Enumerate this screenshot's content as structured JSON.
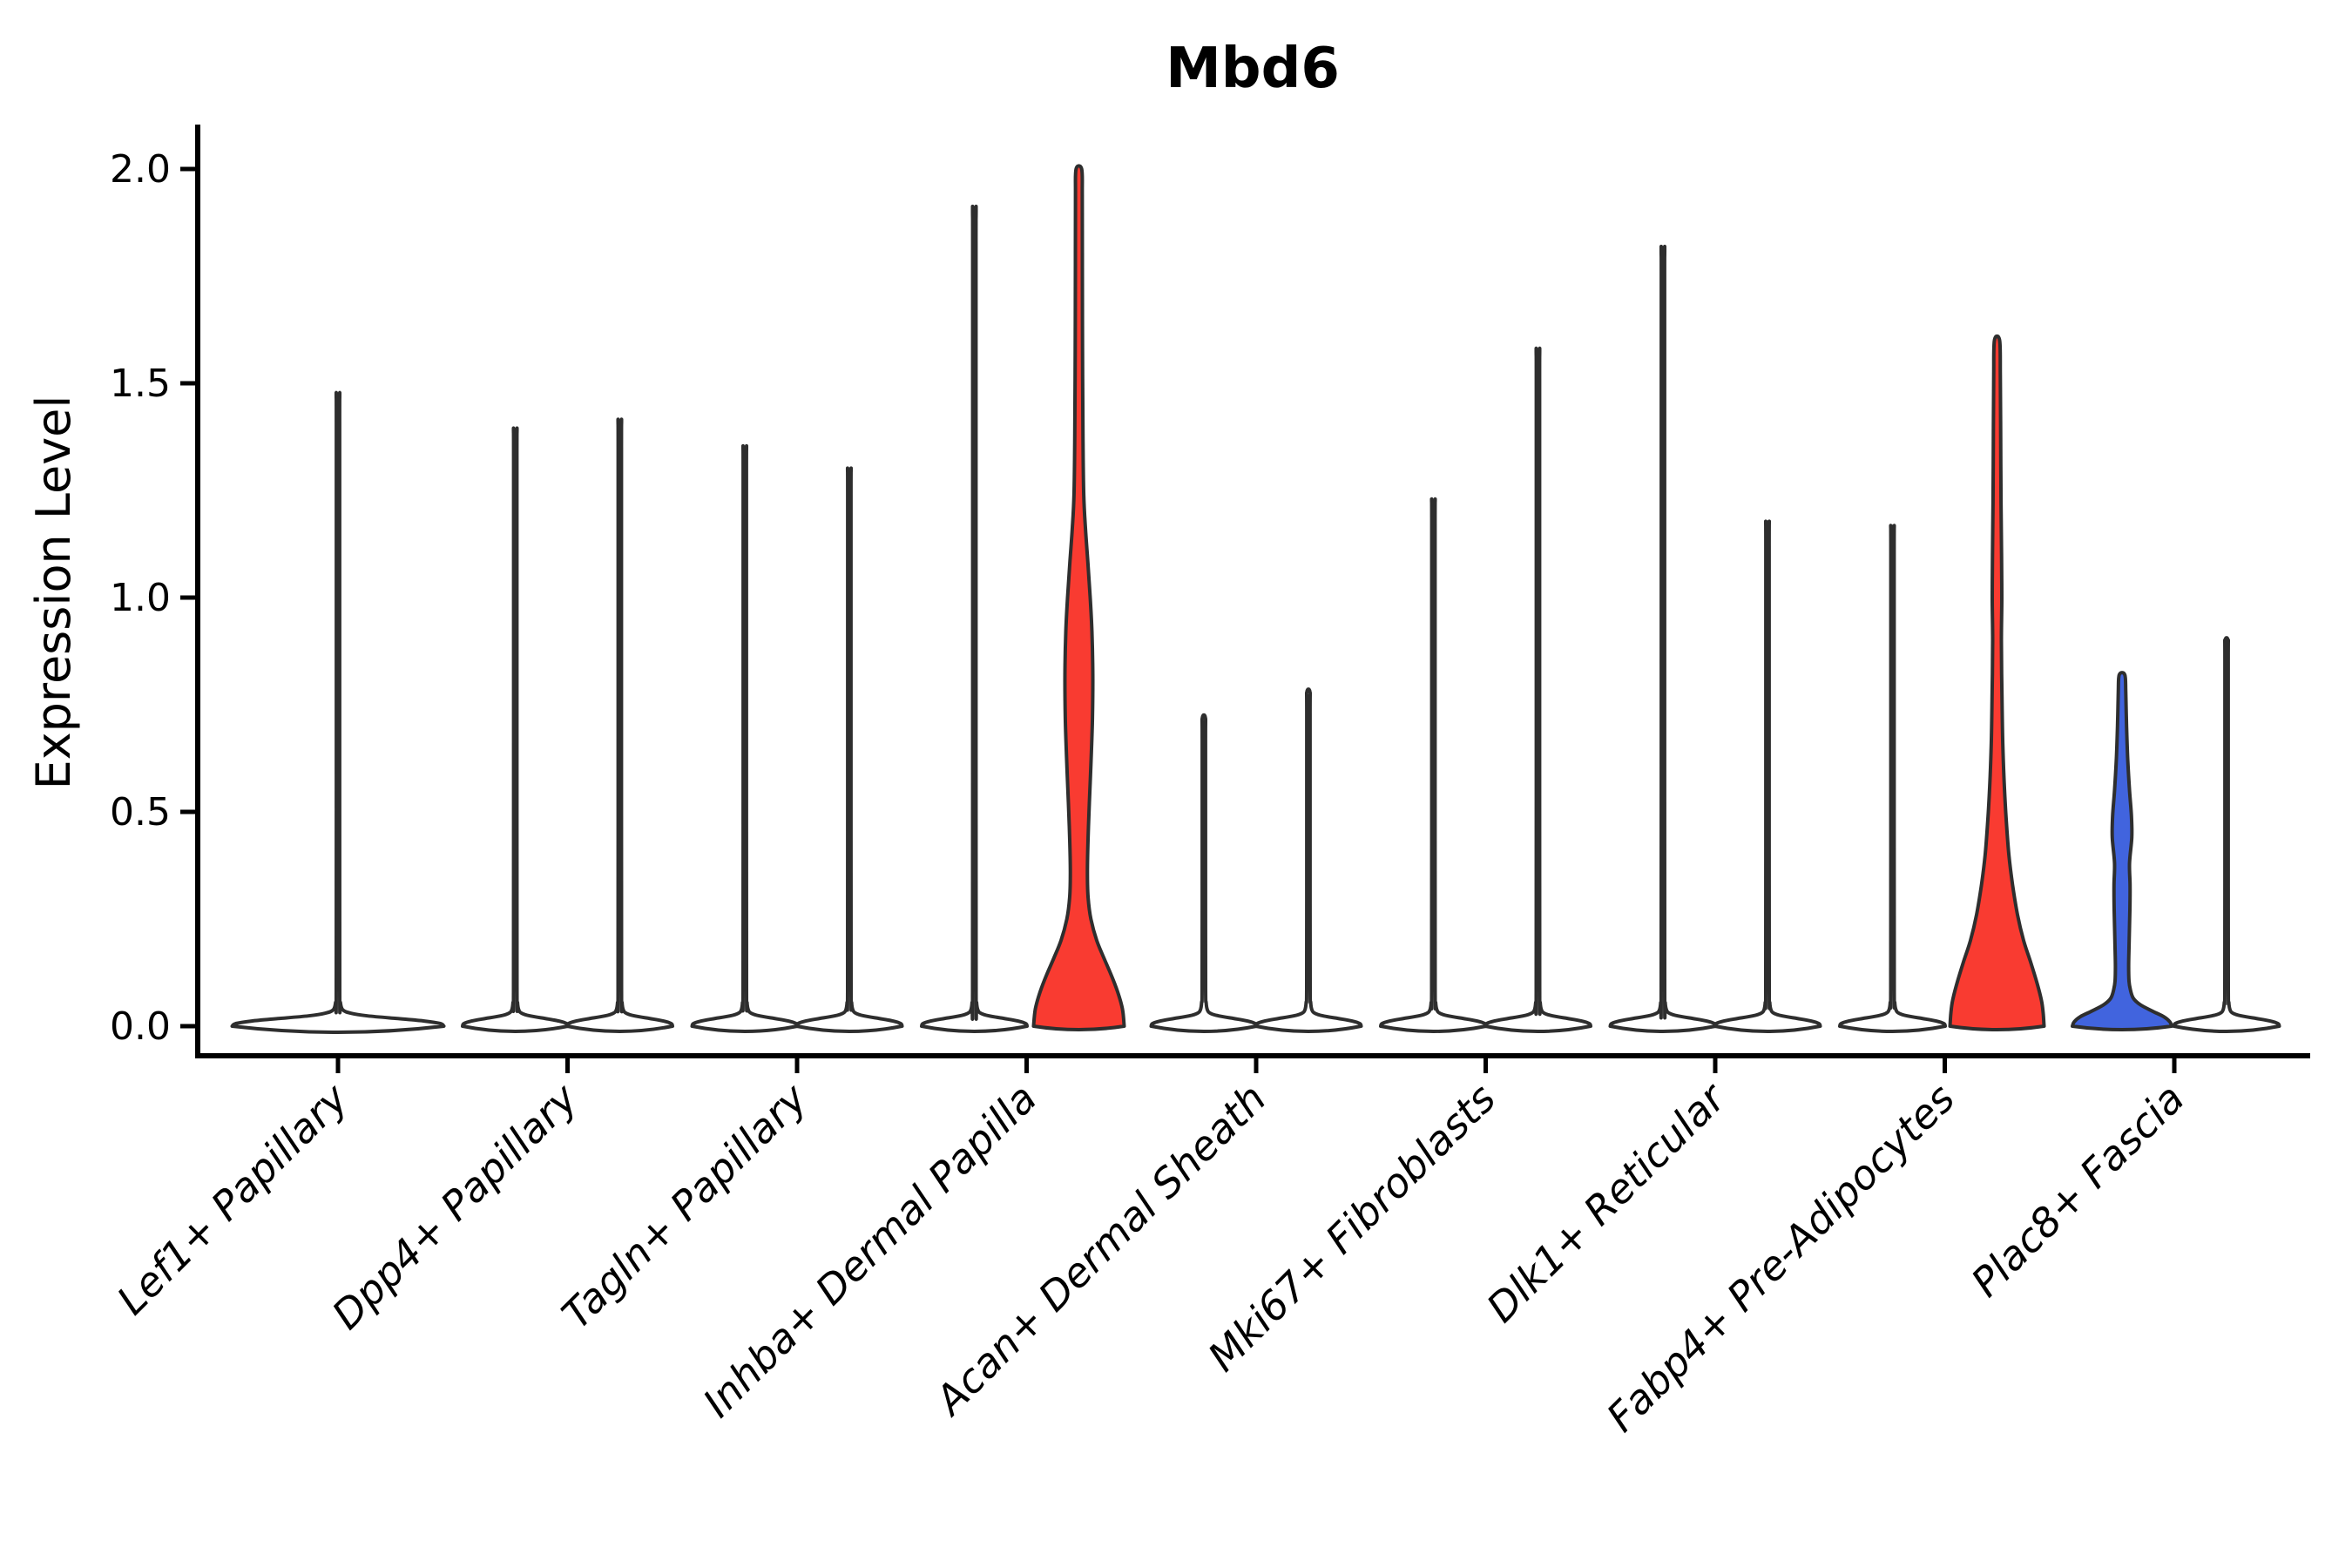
{
  "chart_data": {
    "type": "violin",
    "title": "Mbd6",
    "ylabel": "Expression Level",
    "ylim": [
      -0.07,
      2.11
    ],
    "yticks": [
      0.0,
      0.5,
      1.0,
      1.5,
      2.0
    ],
    "ytick_labels": [
      "0.0",
      "0.5",
      "1.0",
      "1.5",
      "2.0"
    ],
    "grid": "off",
    "legend": "none",
    "categories": [
      "Lef1+ Papillary",
      "Dpp4+ Papillary",
      "Tagln+ Papillary",
      "Inhba+ Dermal Papilla",
      "Acan+ Dermal Sheath",
      "Mki67+ Fibroblasts",
      "Dlk1+ Reticular",
      "Fabp4+ Pre-Adipocytes",
      "Plac8+ Fascia"
    ],
    "colors": {
      "background": "#ffffff",
      "axis": "#000000",
      "violin_outline": "#2e2e2e",
      "violin_plain_fill": "#ffffff",
      "highlight_red": "#f93b31",
      "highlight_blue": "#4164de"
    },
    "violins": [
      {
        "category": "Lef1+ Papillary",
        "group_index": 0,
        "slot": "single",
        "fill": "plain",
        "max_expression": 1.46,
        "profile": [
          [
            0,
            121.5
          ],
          [
            0.006,
            117.5
          ],
          [
            0.012,
            99
          ],
          [
            0.018,
            67
          ],
          [
            0.024,
            34
          ],
          [
            0.03,
            15
          ],
          [
            0.038,
            5.5
          ],
          [
            0.055,
            2.8
          ],
          [
            0.09,
            2.0
          ],
          [
            0.73,
            1.9
          ],
          [
            1.41,
            1.9
          ],
          [
            1.46,
            1.7
          ]
        ]
      },
      {
        "category": "Dpp4+ Papillary",
        "group_index": 1,
        "slot": "left",
        "fill": "plain",
        "max_expression": 1.38,
        "profile": [
          [
            0,
            60.5
          ],
          [
            0.006,
            59
          ],
          [
            0.012,
            50
          ],
          [
            0.018,
            34
          ],
          [
            0.024,
            17
          ],
          [
            0.03,
            7.5
          ],
          [
            0.038,
            4
          ],
          [
            0.055,
            2.6
          ],
          [
            0.09,
            2.0
          ],
          [
            0.69,
            1.9
          ],
          [
            1.33,
            1.9
          ],
          [
            1.38,
            1.7
          ]
        ]
      },
      {
        "category": "Dpp4+ Papillary",
        "group_index": 1,
        "slot": "right",
        "fill": "plain",
        "max_expression": 1.4,
        "profile": [
          [
            0,
            60.5
          ],
          [
            0.006,
            59
          ],
          [
            0.012,
            50
          ],
          [
            0.018,
            34
          ],
          [
            0.024,
            17
          ],
          [
            0.03,
            7.5
          ],
          [
            0.038,
            4
          ],
          [
            0.055,
            2.6
          ],
          [
            0.09,
            2.0
          ],
          [
            0.7,
            1.9
          ],
          [
            1.35,
            1.9
          ],
          [
            1.4,
            1.7
          ]
        ]
      },
      {
        "category": "Tagln+ Papillary",
        "group_index": 2,
        "slot": "left",
        "fill": "plain",
        "max_expression": 1.34,
        "profile": [
          [
            0,
            60.5
          ],
          [
            0.006,
            59
          ],
          [
            0.012,
            50
          ],
          [
            0.018,
            34
          ],
          [
            0.024,
            17
          ],
          [
            0.03,
            7.5
          ],
          [
            0.038,
            4
          ],
          [
            0.055,
            2.6
          ],
          [
            0.09,
            2.0
          ],
          [
            0.67,
            1.9
          ],
          [
            1.29,
            1.9
          ],
          [
            1.34,
            1.7
          ]
        ]
      },
      {
        "category": "Tagln+ Papillary",
        "group_index": 2,
        "slot": "right",
        "fill": "plain",
        "max_expression": 1.29,
        "profile": [
          [
            0,
            60.5
          ],
          [
            0.006,
            59
          ],
          [
            0.012,
            50
          ],
          [
            0.018,
            34
          ],
          [
            0.024,
            17
          ],
          [
            0.03,
            7.5
          ],
          [
            0.038,
            4
          ],
          [
            0.055,
            2.6
          ],
          [
            0.09,
            2.0
          ],
          [
            0.65,
            1.9
          ],
          [
            1.24,
            1.9
          ],
          [
            1.29,
            1.7
          ]
        ]
      },
      {
        "category": "Inhba+ Dermal Papilla",
        "group_index": 3,
        "slot": "left",
        "fill": "plain",
        "max_expression": 1.88,
        "profile": [
          [
            0,
            60.5
          ],
          [
            0.006,
            59
          ],
          [
            0.012,
            50
          ],
          [
            0.018,
            34
          ],
          [
            0.024,
            17
          ],
          [
            0.03,
            7.5
          ],
          [
            0.038,
            4
          ],
          [
            0.055,
            2.6
          ],
          [
            0.09,
            2.0
          ],
          [
            0.94,
            1.9
          ],
          [
            1.83,
            1.9
          ],
          [
            1.88,
            1.7
          ]
        ]
      },
      {
        "category": "Inhba+ Dermal Papilla",
        "group_index": 3,
        "slot": "right",
        "fill": "red",
        "max_expression": 2.0,
        "profile": [
          [
            0,
            52
          ],
          [
            0.04,
            50
          ],
          [
            0.08,
            44.5
          ],
          [
            0.12,
            37
          ],
          [
            0.16,
            28.5
          ],
          [
            0.2,
            20.5
          ],
          [
            0.25,
            13.8
          ],
          [
            0.3,
            10.6
          ],
          [
            0.36,
            9.8
          ],
          [
            0.44,
            10.6
          ],
          [
            0.52,
            12
          ],
          [
            0.62,
            14
          ],
          [
            0.72,
            15.6
          ],
          [
            0.82,
            16
          ],
          [
            0.92,
            15
          ],
          [
            1.0,
            13
          ],
          [
            1.08,
            10.4
          ],
          [
            1.16,
            7.6
          ],
          [
            1.24,
            5.6
          ],
          [
            1.38,
            4.7
          ],
          [
            1.58,
            4.2
          ],
          [
            1.78,
            4.0
          ],
          [
            1.94,
            3.9
          ],
          [
            2.0,
            3.2
          ]
        ]
      },
      {
        "category": "Acan+ Dermal Sheath",
        "group_index": 4,
        "slot": "left",
        "fill": "plain",
        "max_expression": 0.72,
        "profile": [
          [
            0,
            60.5
          ],
          [
            0.006,
            59
          ],
          [
            0.012,
            50
          ],
          [
            0.018,
            34
          ],
          [
            0.024,
            17
          ],
          [
            0.03,
            7.5
          ],
          [
            0.038,
            4
          ],
          [
            0.055,
            2.6
          ],
          [
            0.09,
            2.0
          ],
          [
            0.36,
            1.9
          ],
          [
            0.67,
            1.9
          ],
          [
            0.72,
            1.7
          ]
        ]
      },
      {
        "category": "Acan+ Dermal Sheath",
        "group_index": 4,
        "slot": "right",
        "fill": "plain",
        "max_expression": 0.78,
        "profile": [
          [
            0,
            60.5
          ],
          [
            0.006,
            59
          ],
          [
            0.012,
            50
          ],
          [
            0.018,
            34
          ],
          [
            0.024,
            17
          ],
          [
            0.03,
            7.5
          ],
          [
            0.038,
            4
          ],
          [
            0.055,
            2.6
          ],
          [
            0.09,
            2.0
          ],
          [
            0.39,
            1.9
          ],
          [
            0.73,
            1.9
          ],
          [
            0.78,
            1.7
          ]
        ]
      },
      {
        "category": "Mki67+ Fibroblasts",
        "group_index": 5,
        "slot": "left",
        "fill": "plain",
        "max_expression": 1.22,
        "profile": [
          [
            0,
            60.5
          ],
          [
            0.006,
            59
          ],
          [
            0.012,
            50
          ],
          [
            0.018,
            34
          ],
          [
            0.024,
            17
          ],
          [
            0.03,
            7.5
          ],
          [
            0.038,
            4
          ],
          [
            0.055,
            2.6
          ],
          [
            0.09,
            2.0
          ],
          [
            0.61,
            1.9
          ],
          [
            1.17,
            1.9
          ],
          [
            1.22,
            1.7
          ]
        ]
      },
      {
        "category": "Mki67+ Fibroblasts",
        "group_index": 5,
        "slot": "right",
        "fill": "plain",
        "max_expression": 1.56,
        "profile": [
          [
            0,
            60.5
          ],
          [
            0.006,
            59
          ],
          [
            0.012,
            50
          ],
          [
            0.018,
            34
          ],
          [
            0.024,
            17
          ],
          [
            0.03,
            7.5
          ],
          [
            0.038,
            4
          ],
          [
            0.055,
            2.6
          ],
          [
            0.09,
            2.0
          ],
          [
            0.78,
            1.9
          ],
          [
            1.51,
            1.9
          ],
          [
            1.56,
            1.7
          ]
        ]
      },
      {
        "category": "Dlk1+ Reticular",
        "group_index": 6,
        "slot": "left",
        "fill": "plain",
        "max_expression": 1.79,
        "profile": [
          [
            0,
            60.5
          ],
          [
            0.006,
            59
          ],
          [
            0.012,
            50
          ],
          [
            0.018,
            34
          ],
          [
            0.024,
            17
          ],
          [
            0.03,
            7.5
          ],
          [
            0.038,
            4
          ],
          [
            0.055,
            2.6
          ],
          [
            0.09,
            2.0
          ],
          [
            0.9,
            1.9
          ],
          [
            1.74,
            1.9
          ],
          [
            1.79,
            1.7
          ]
        ]
      },
      {
        "category": "Dlk1+ Reticular",
        "group_index": 6,
        "slot": "right",
        "fill": "plain",
        "max_expression": 1.17,
        "profile": [
          [
            0,
            60.5
          ],
          [
            0.006,
            59
          ],
          [
            0.012,
            50
          ],
          [
            0.018,
            34
          ],
          [
            0.024,
            17
          ],
          [
            0.03,
            7.5
          ],
          [
            0.038,
            4
          ],
          [
            0.055,
            2.6
          ],
          [
            0.09,
            2.0
          ],
          [
            0.59,
            1.9
          ],
          [
            1.12,
            1.9
          ],
          [
            1.17,
            1.7
          ]
        ]
      },
      {
        "category": "Fabp4+ Pre-Adipocytes",
        "group_index": 7,
        "slot": "left",
        "fill": "plain",
        "max_expression": 1.16,
        "profile": [
          [
            0,
            60.5
          ],
          [
            0.006,
            59
          ],
          [
            0.012,
            50
          ],
          [
            0.018,
            34
          ],
          [
            0.024,
            17
          ],
          [
            0.03,
            7.5
          ],
          [
            0.038,
            4
          ],
          [
            0.055,
            2.6
          ],
          [
            0.09,
            2.0
          ],
          [
            0.58,
            1.9
          ],
          [
            1.11,
            1.9
          ],
          [
            1.16,
            1.7
          ]
        ]
      },
      {
        "category": "Fabp4+ Pre-Adipocytes",
        "group_index": 7,
        "slot": "right",
        "fill": "red",
        "max_expression": 1.6,
        "profile": [
          [
            0,
            54
          ],
          [
            0.03,
            53
          ],
          [
            0.06,
            51
          ],
          [
            0.1,
            46
          ],
          [
            0.15,
            38.5
          ],
          [
            0.2,
            30.5
          ],
          [
            0.26,
            23.5
          ],
          [
            0.33,
            17.8
          ],
          [
            0.4,
            13.6
          ],
          [
            0.48,
            10.6
          ],
          [
            0.56,
            8.4
          ],
          [
            0.66,
            6.6
          ],
          [
            0.78,
            5.6
          ],
          [
            0.9,
            5.0
          ],
          [
            1.0,
            5.5
          ],
          [
            1.1,
            5.2
          ],
          [
            1.22,
            4.6
          ],
          [
            1.38,
            4.2
          ],
          [
            1.52,
            3.8
          ],
          [
            1.6,
            3.0
          ]
        ]
      },
      {
        "category": "Plac8+ Fascia",
        "group_index": 8,
        "slot": "left",
        "fill": "blue",
        "max_expression": 0.82,
        "profile": [
          [
            0,
            57
          ],
          [
            0.01,
            55
          ],
          [
            0.022,
            48
          ],
          [
            0.035,
            35
          ],
          [
            0.05,
            21
          ],
          [
            0.065,
            13
          ],
          [
            0.085,
            9.6
          ],
          [
            0.105,
            8.0
          ],
          [
            0.14,
            7.6
          ],
          [
            0.2,
            8.2
          ],
          [
            0.27,
            9.0
          ],
          [
            0.33,
            9.2
          ],
          [
            0.38,
            8.6
          ],
          [
            0.44,
            11.2
          ],
          [
            0.49,
            10.8
          ],
          [
            0.55,
            8.6
          ],
          [
            0.62,
            6.6
          ],
          [
            0.7,
            5.2
          ],
          [
            0.78,
            4.3
          ],
          [
            0.82,
            3.2
          ]
        ]
      },
      {
        "category": "Plac8+ Fascia",
        "group_index": 8,
        "slot": "right",
        "fill": "plain",
        "max_expression": 0.9,
        "profile": [
          [
            0,
            60.5
          ],
          [
            0.006,
            59
          ],
          [
            0.012,
            50
          ],
          [
            0.018,
            34
          ],
          [
            0.024,
            17
          ],
          [
            0.03,
            7.5
          ],
          [
            0.038,
            4
          ],
          [
            0.055,
            2.6
          ],
          [
            0.09,
            2.0
          ],
          [
            0.45,
            1.9
          ],
          [
            0.85,
            1.9
          ],
          [
            0.9,
            1.7
          ]
        ]
      }
    ]
  }
}
